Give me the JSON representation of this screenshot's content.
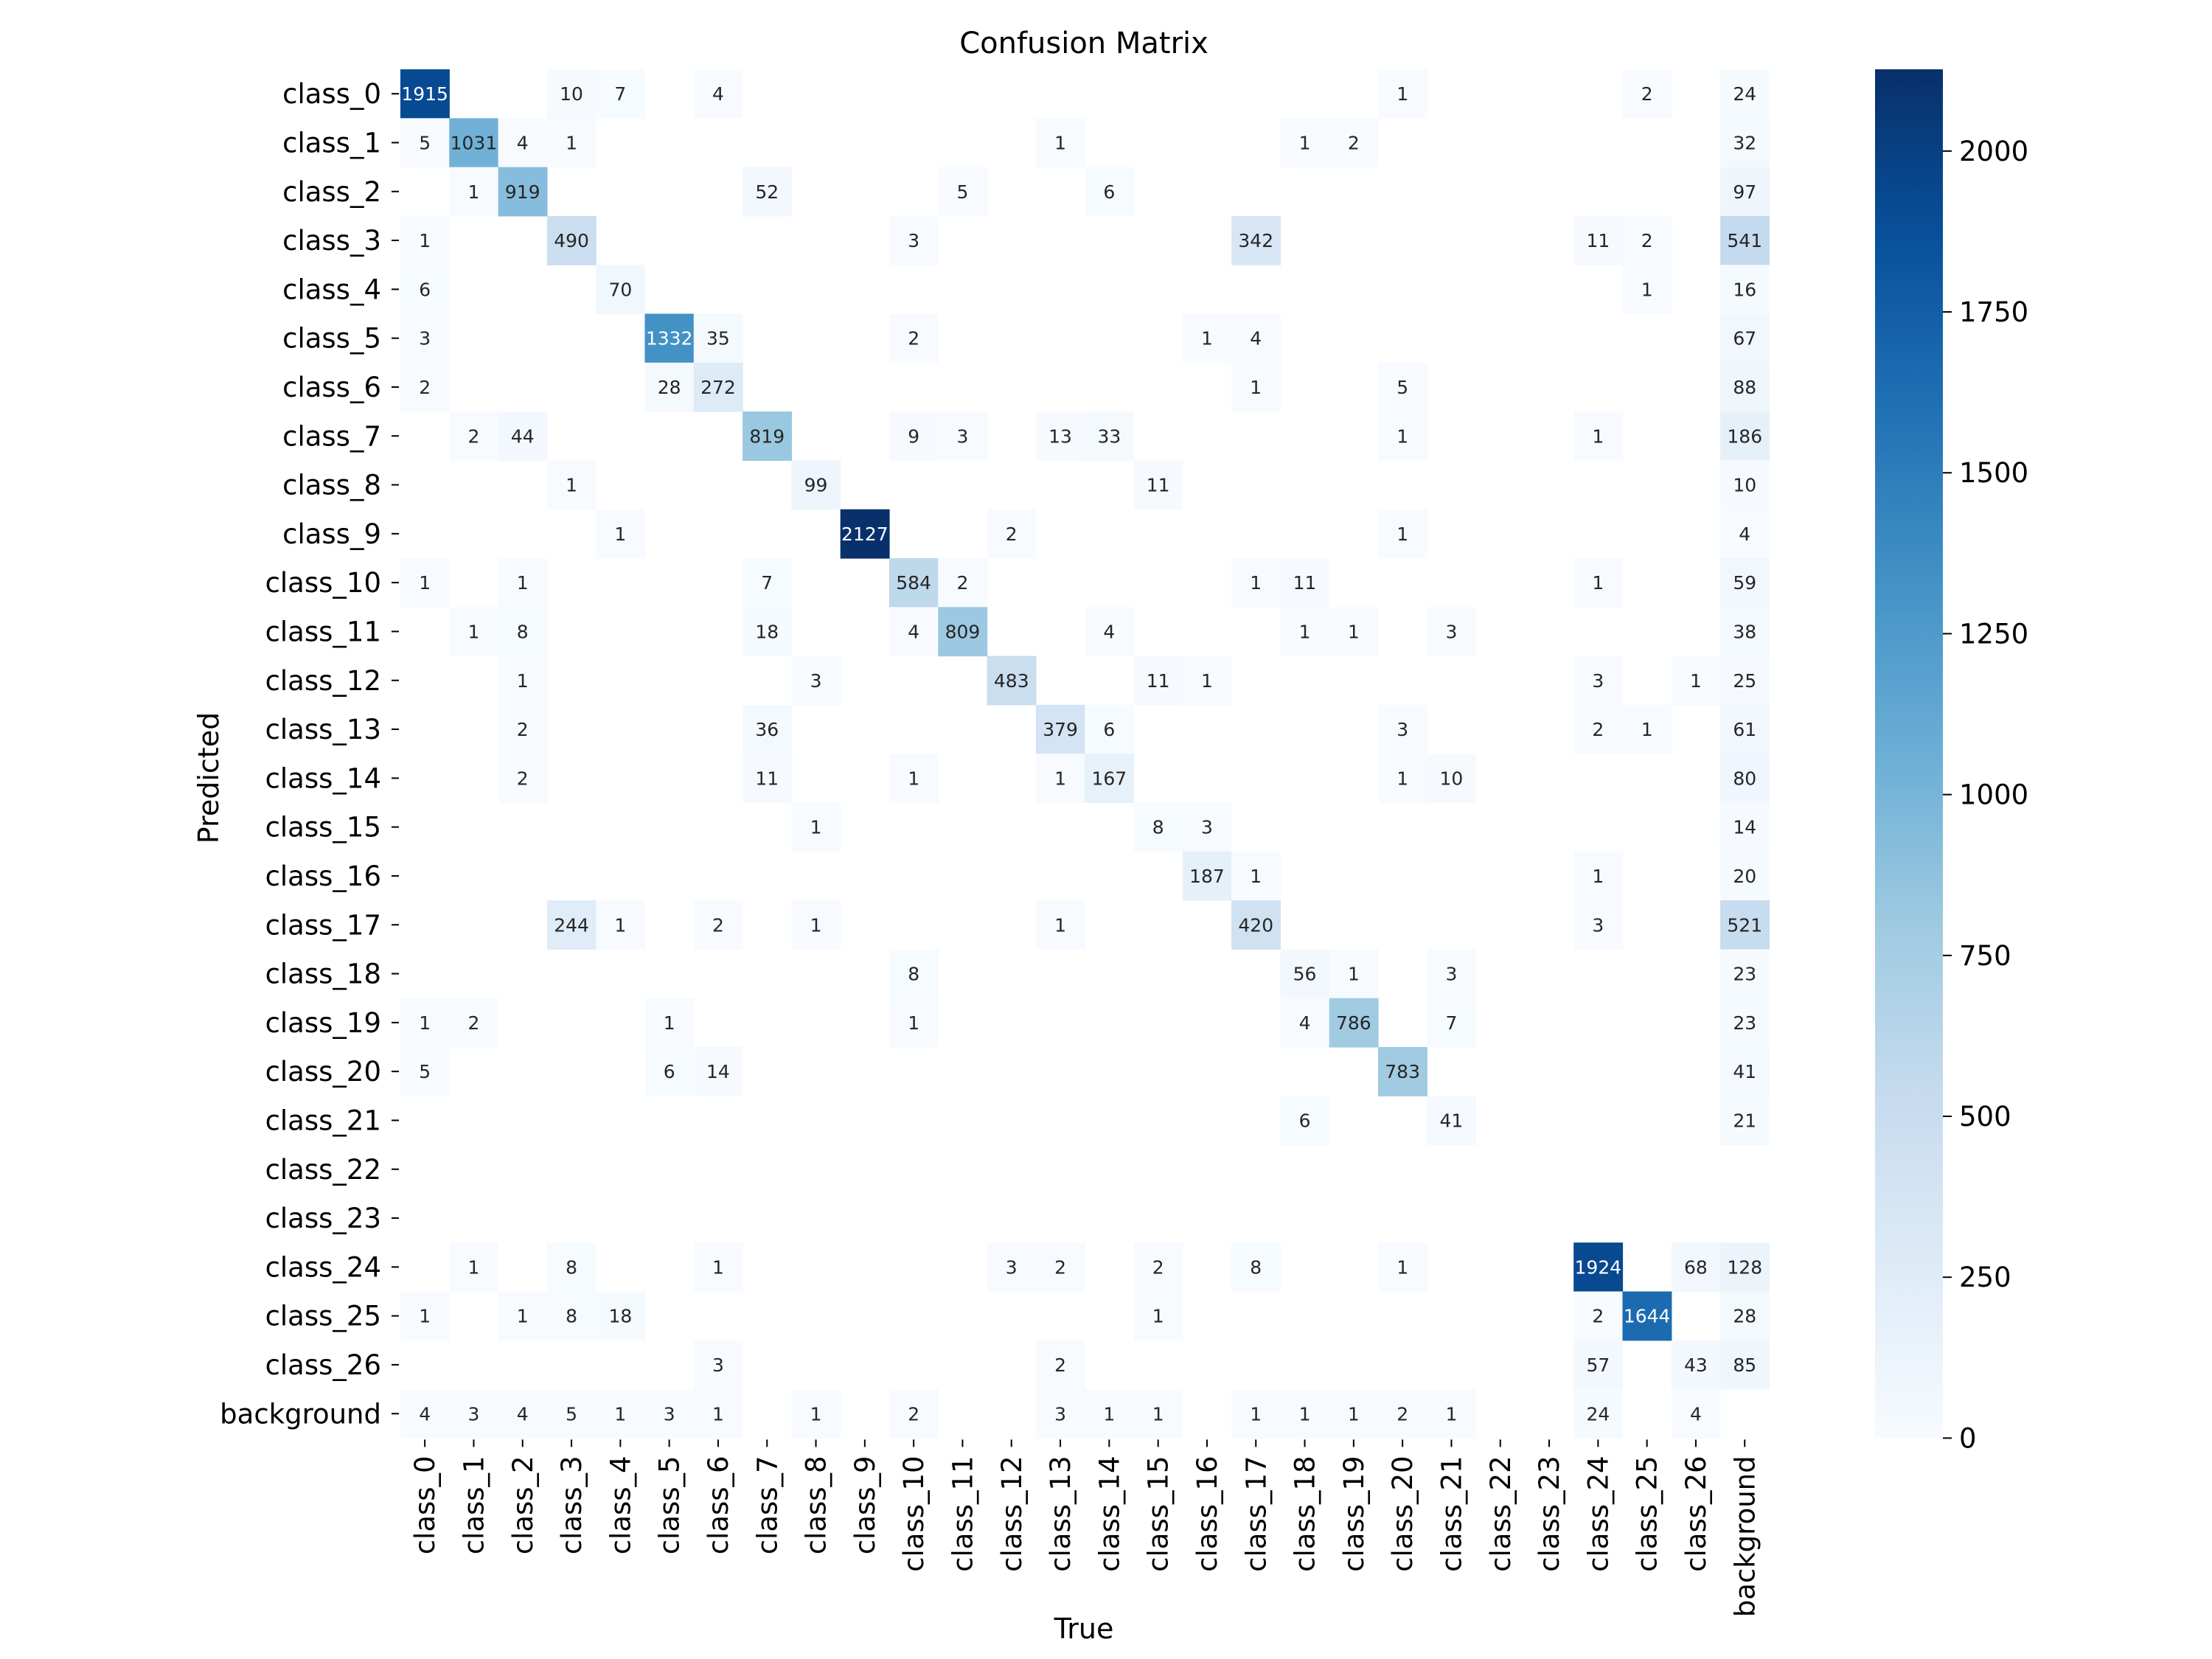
{
  "chart_data": {
    "type": "heatmap",
    "title": "Confusion Matrix",
    "xlabel": "True",
    "ylabel": "Predicted",
    "x_categories": [
      "class_0",
      "class_1",
      "class_2",
      "class_3",
      "class_4",
      "class_5",
      "class_6",
      "class_7",
      "class_8",
      "class_9",
      "class_10",
      "class_11",
      "class_12",
      "class_13",
      "class_14",
      "class_15",
      "class_16",
      "class_17",
      "class_18",
      "class_19",
      "class_20",
      "class_21",
      "class_22",
      "class_23",
      "class_24",
      "class_25",
      "class_26",
      "background"
    ],
    "y_categories": [
      "class_0",
      "class_1",
      "class_2",
      "class_3",
      "class_4",
      "class_5",
      "class_6",
      "class_7",
      "class_8",
      "class_9",
      "class_10",
      "class_11",
      "class_12",
      "class_13",
      "class_14",
      "class_15",
      "class_16",
      "class_17",
      "class_18",
      "class_19",
      "class_20",
      "class_21",
      "class_22",
      "class_23",
      "class_24",
      "class_25",
      "class_26",
      "background"
    ],
    "values": [
      [
        1915,
        0,
        0,
        10,
        7,
        0,
        4,
        0,
        0,
        0,
        0,
        0,
        0,
        0,
        0,
        0,
        0,
        0,
        0,
        0,
        1,
        0,
        0,
        0,
        0,
        2,
        0,
        24
      ],
      [
        5,
        1031,
        4,
        1,
        0,
        0,
        0,
        0,
        0,
        0,
        0,
        0,
        0,
        1,
        0,
        0,
        0,
        0,
        1,
        2,
        0,
        0,
        0,
        0,
        0,
        0,
        0,
        32
      ],
      [
        0,
        1,
        919,
        0,
        0,
        0,
        0,
        52,
        0,
        0,
        0,
        5,
        0,
        0,
        6,
        0,
        0,
        0,
        0,
        0,
        0,
        0,
        0,
        0,
        0,
        0,
        0,
        97
      ],
      [
        1,
        0,
        0,
        490,
        0,
        0,
        0,
        0,
        0,
        0,
        3,
        0,
        0,
        0,
        0,
        0,
        0,
        342,
        0,
        0,
        0,
        0,
        0,
        0,
        11,
        2,
        0,
        541
      ],
      [
        6,
        0,
        0,
        0,
        70,
        0,
        0,
        0,
        0,
        0,
        0,
        0,
        0,
        0,
        0,
        0,
        0,
        0,
        0,
        0,
        0,
        0,
        0,
        0,
        0,
        1,
        0,
        16
      ],
      [
        3,
        0,
        0,
        0,
        0,
        1332,
        35,
        0,
        0,
        0,
        2,
        0,
        0,
        0,
        0,
        0,
        1,
        4,
        0,
        0,
        0,
        0,
        0,
        0,
        0,
        0,
        0,
        67
      ],
      [
        2,
        0,
        0,
        0,
        0,
        28,
        272,
        0,
        0,
        0,
        0,
        0,
        0,
        0,
        0,
        0,
        0,
        1,
        0,
        0,
        5,
        0,
        0,
        0,
        0,
        0,
        0,
        88
      ],
      [
        0,
        2,
        44,
        0,
        0,
        0,
        0,
        819,
        0,
        0,
        9,
        3,
        0,
        13,
        33,
        0,
        0,
        0,
        0,
        0,
        1,
        0,
        0,
        0,
        1,
        0,
        0,
        186
      ],
      [
        0,
        0,
        0,
        1,
        0,
        0,
        0,
        0,
        99,
        0,
        0,
        0,
        0,
        0,
        0,
        11,
        0,
        0,
        0,
        0,
        0,
        0,
        0,
        0,
        0,
        0,
        0,
        10
      ],
      [
        0,
        0,
        0,
        0,
        1,
        0,
        0,
        0,
        0,
        2127,
        0,
        0,
        2,
        0,
        0,
        0,
        0,
        0,
        0,
        0,
        1,
        0,
        0,
        0,
        0,
        0,
        0,
        4
      ],
      [
        1,
        0,
        1,
        0,
        0,
        0,
        0,
        7,
        0,
        0,
        584,
        2,
        0,
        0,
        0,
        0,
        0,
        1,
        11,
        0,
        0,
        0,
        0,
        0,
        1,
        0,
        0,
        59
      ],
      [
        0,
        1,
        8,
        0,
        0,
        0,
        0,
        18,
        0,
        0,
        4,
        809,
        0,
        0,
        4,
        0,
        0,
        0,
        1,
        1,
        0,
        3,
        0,
        0,
        0,
        0,
        0,
        38
      ],
      [
        0,
        0,
        1,
        0,
        0,
        0,
        0,
        0,
        3,
        0,
        0,
        0,
        483,
        0,
        0,
        11,
        1,
        0,
        0,
        0,
        0,
        0,
        0,
        0,
        3,
        0,
        1,
        25
      ],
      [
        0,
        0,
        2,
        0,
        0,
        0,
        0,
        36,
        0,
        0,
        0,
        0,
        0,
        379,
        6,
        0,
        0,
        0,
        0,
        0,
        3,
        0,
        0,
        0,
        2,
        1,
        0,
        61
      ],
      [
        0,
        0,
        2,
        0,
        0,
        0,
        0,
        11,
        0,
        0,
        1,
        0,
        0,
        1,
        167,
        0,
        0,
        0,
        0,
        0,
        1,
        10,
        0,
        0,
        0,
        0,
        0,
        80
      ],
      [
        0,
        0,
        0,
        0,
        0,
        0,
        0,
        0,
        1,
        0,
        0,
        0,
        0,
        0,
        0,
        8,
        3,
        0,
        0,
        0,
        0,
        0,
        0,
        0,
        0,
        0,
        0,
        14
      ],
      [
        0,
        0,
        0,
        0,
        0,
        0,
        0,
        0,
        0,
        0,
        0,
        0,
        0,
        0,
        0,
        0,
        187,
        1,
        0,
        0,
        0,
        0,
        0,
        0,
        1,
        0,
        0,
        20
      ],
      [
        0,
        0,
        0,
        244,
        1,
        0,
        2,
        0,
        1,
        0,
        0,
        0,
        0,
        1,
        0,
        0,
        0,
        420,
        0,
        0,
        0,
        0,
        0,
        0,
        3,
        0,
        0,
        521
      ],
      [
        0,
        0,
        0,
        0,
        0,
        0,
        0,
        0,
        0,
        0,
        8,
        0,
        0,
        0,
        0,
        0,
        0,
        0,
        56,
        1,
        0,
        3,
        0,
        0,
        0,
        0,
        0,
        23
      ],
      [
        1,
        2,
        0,
        0,
        0,
        1,
        0,
        0,
        0,
        0,
        1,
        0,
        0,
        0,
        0,
        0,
        0,
        0,
        4,
        786,
        0,
        7,
        0,
        0,
        0,
        0,
        0,
        23
      ],
      [
        5,
        0,
        0,
        0,
        0,
        6,
        14,
        0,
        0,
        0,
        0,
        0,
        0,
        0,
        0,
        0,
        0,
        0,
        0,
        0,
        783,
        0,
        0,
        0,
        0,
        0,
        0,
        41
      ],
      [
        0,
        0,
        0,
        0,
        0,
        0,
        0,
        0,
        0,
        0,
        0,
        0,
        0,
        0,
        0,
        0,
        0,
        0,
        6,
        0,
        0,
        41,
        0,
        0,
        0,
        0,
        0,
        21
      ],
      [
        0,
        0,
        0,
        0,
        0,
        0,
        0,
        0,
        0,
        0,
        0,
        0,
        0,
        0,
        0,
        0,
        0,
        0,
        0,
        0,
        0,
        0,
        0,
        0,
        0,
        0,
        0,
        0
      ],
      [
        0,
        0,
        0,
        0,
        0,
        0,
        0,
        0,
        0,
        0,
        0,
        0,
        0,
        0,
        0,
        0,
        0,
        0,
        0,
        0,
        0,
        0,
        0,
        0,
        0,
        0,
        0,
        0
      ],
      [
        0,
        1,
        0,
        8,
        0,
        0,
        1,
        0,
        0,
        0,
        0,
        0,
        3,
        2,
        0,
        2,
        0,
        8,
        0,
        0,
        1,
        0,
        0,
        0,
        1924,
        0,
        68,
        128
      ],
      [
        1,
        0,
        1,
        8,
        18,
        0,
        0,
        0,
        0,
        0,
        0,
        0,
        0,
        0,
        0,
        1,
        0,
        0,
        0,
        0,
        0,
        0,
        0,
        0,
        2,
        1644,
        0,
        28
      ],
      [
        0,
        0,
        0,
        0,
        0,
        0,
        3,
        0,
        0,
        0,
        0,
        0,
        0,
        2,
        0,
        0,
        0,
        0,
        0,
        0,
        0,
        0,
        0,
        0,
        57,
        0,
        43,
        85
      ],
      [
        4,
        3,
        4,
        5,
        1,
        3,
        1,
        0,
        1,
        0,
        2,
        0,
        0,
        3,
        1,
        1,
        0,
        1,
        1,
        1,
        2,
        1,
        0,
        0,
        24,
        0,
        4,
        0
      ]
    ],
    "colorbar": {
      "min": 0,
      "max": 2127,
      "ticks": [
        0,
        250,
        500,
        750,
        1000,
        1250,
        1500,
        1750,
        2000
      ],
      "colormap": "Blues"
    },
    "zero_cells_hidden": true
  }
}
